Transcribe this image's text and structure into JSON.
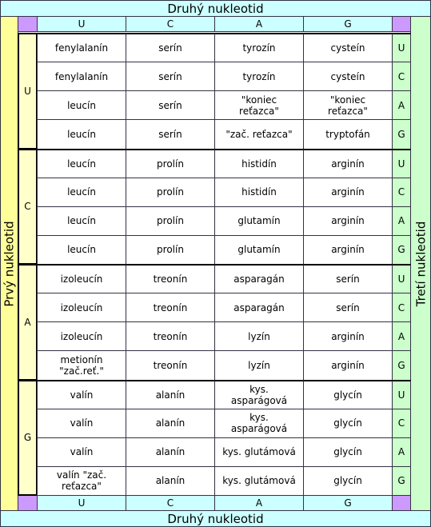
{
  "top_title": "Druhý nukleotid",
  "bottom_title": "Druhý nukleotid",
  "left_title": "Prvý nukleotid",
  "right_title": "Tretí nukleotid",
  "second_bases_top": [
    "U",
    "C",
    "A",
    "G"
  ],
  "second_bases_bottom": [
    "U",
    "C",
    "A",
    "G"
  ],
  "first_bases": [
    "U",
    "C",
    "A",
    "G"
  ],
  "third_bases": [
    "U",
    "C",
    "A",
    "G",
    "U",
    "C",
    "A",
    "G",
    "U",
    "C",
    "A",
    "G",
    "U",
    "C",
    "A",
    "G"
  ],
  "rows": [
    [
      "fenylalanín",
      "serín",
      "tyrozín",
      "cysteín"
    ],
    [
      "fenylalanín",
      "serín",
      "tyrozín",
      "cysteín"
    ],
    [
      "leucín",
      "serín",
      "\"koniec\nreťazca\"",
      "\"koniec\nreťazca\""
    ],
    [
      "leucín",
      "serín",
      "\"zač. reťazca\"",
      "tryptofán"
    ],
    [
      "leucín",
      "prolín",
      "histidín",
      "arginín"
    ],
    [
      "leucín",
      "prolín",
      "histidín",
      "arginín"
    ],
    [
      "leucín",
      "prolín",
      "glutamín",
      "arginín"
    ],
    [
      "leucín",
      "prolín",
      "glutamín",
      "arginín"
    ],
    [
      "izoleucín",
      "treonín",
      "asparagán",
      "serín"
    ],
    [
      "izoleucín",
      "treonín",
      "asparagán",
      "serín"
    ],
    [
      "izoleucín",
      "treonín",
      "lyzín",
      "arginín"
    ],
    [
      "metionín\n\"zač.reť.\"",
      "treonín",
      "lyzín",
      "arginín"
    ],
    [
      "valín",
      "alanín",
      "kys.\nasparágová",
      "glycín"
    ],
    [
      "valín",
      "alanín",
      "kys.\nasparágová",
      "glycín"
    ],
    [
      "valín",
      "alanín",
      "kys. glutámová",
      "glycín"
    ],
    [
      "valín \"zač.\nreťazca\"",
      "alanín",
      "kys. glutámová",
      "glycín"
    ]
  ]
}
